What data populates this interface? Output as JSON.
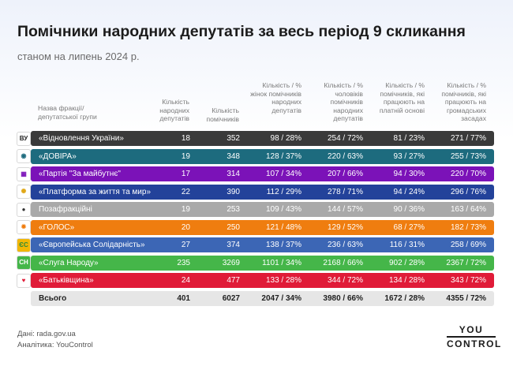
{
  "title": "Помічники народних депутатів за весь період 9 скликання",
  "subtitle": "станом на липень 2024 р.",
  "chart_data": {
    "type": "table",
    "columns": [
      "Назва фракції/ депутатської групи",
      "Кількість народних депутатів",
      "Кількість помічників",
      "Кількість / % жінок помічників народних депутатів",
      "Кількість / % чоловіків помічників народних депутатів",
      "Кількість / % помічників, які працюють на платній основі",
      "Кількість / % помічників, які працюють на громадських засадах"
    ],
    "rows": [
      {
        "name": "«Відновлення України»",
        "deputies": "18",
        "assistants": "352",
        "women": "98 / 28%",
        "men": "254 / 72%",
        "paid": "81 / 23%",
        "volunteer": "271 / 77%",
        "color": "#3a3a3a",
        "text_color": "#ffffff",
        "logo_text": "ВУ",
        "logo_bg": "#ffffff",
        "logo_fg": "#222222"
      },
      {
        "name": "«ДОВІРА»",
        "deputies": "19",
        "assistants": "348",
        "women": "128 / 37%",
        "men": "220 / 63%",
        "paid": "93 / 27%",
        "volunteer": "255 / 73%",
        "color": "#1d6b7e",
        "text_color": "#ffffff",
        "logo_text": "◉",
        "logo_bg": "#ffffff",
        "logo_fg": "#1d6b7e"
      },
      {
        "name": "«Партія \"За майбутнє\"",
        "deputies": "17",
        "assistants": "314",
        "women": "107 / 34%",
        "men": "207 / 66%",
        "paid": "94 / 30%",
        "volunteer": "220 / 70%",
        "color": "#7b12b8",
        "text_color": "#ffffff",
        "logo_text": "▦",
        "logo_bg": "#ffffff",
        "logo_fg": "#7b12b8"
      },
      {
        "name": "«Платформа за життя та мир»",
        "deputies": "22",
        "assistants": "390",
        "women": "112 / 29%",
        "men": "278 / 71%",
        "paid": "94 / 24%",
        "volunteer": "296 / 76%",
        "color": "#23429a",
        "text_color": "#ffffff",
        "logo_text": "✺",
        "logo_bg": "#ffffff",
        "logo_fg": "#e0a818"
      },
      {
        "name": "Позафракційні",
        "deputies": "19",
        "assistants": "253",
        "women": "109 / 43%",
        "men": "144 / 57%",
        "paid": "90 / 36%",
        "volunteer": "163 / 64%",
        "color": "#a9a9a9",
        "text_color": "#ffffff",
        "logo_text": "●",
        "logo_bg": "#ffffff",
        "logo_fg": "#333333"
      },
      {
        "name": "«ГОЛОС»",
        "deputies": "20",
        "assistants": "250",
        "women": "121 / 48%",
        "men": "129 / 52%",
        "paid": "68 / 27%",
        "volunteer": "182 / 73%",
        "color": "#ef7d0f",
        "text_color": "#ffffff",
        "logo_text": "✹",
        "logo_bg": "#ffffff",
        "logo_fg": "#ef7d0f"
      },
      {
        "name": "«Європейська Солідарність»",
        "deputies": "27",
        "assistants": "374",
        "women": "138 / 37%",
        "men": "236 / 63%",
        "paid": "116 / 31%",
        "volunteer": "258 / 69%",
        "color": "#3c66b5",
        "text_color": "#ffffff",
        "logo_text": "ЄС",
        "logo_bg": "#f2b705",
        "logo_fg": "#2e8b3a"
      },
      {
        "name": "«Слуга Народу»",
        "deputies": "235",
        "assistants": "3269",
        "women": "1101 / 34%",
        "men": "2168 / 66%",
        "paid": "902 / 28%",
        "volunteer": "2367 / 72%",
        "color": "#45b649",
        "text_color": "#ffffff",
        "logo_text": "СН",
        "logo_bg": "#45b649",
        "logo_fg": "#ffffff"
      },
      {
        "name": "«Батьківщина»",
        "deputies": "24",
        "assistants": "477",
        "women": "133 / 28%",
        "men": "344 / 72%",
        "paid": "134 / 28%",
        "volunteer": "343 / 72%",
        "color": "#e01b38",
        "text_color": "#ffffff",
        "logo_text": "♥",
        "logo_bg": "#ffffff",
        "logo_fg": "#e01b38"
      }
    ],
    "total": {
      "name": "Всього",
      "deputies": "401",
      "assistants": "6027",
      "women": "2047 / 34%",
      "men": "3980 / 66%",
      "paid": "1672 / 28%",
      "volunteer": "4355 / 72%",
      "color": "#e6e6e6",
      "text_color": "#1f1f1f"
    }
  },
  "footer": {
    "source": "Дані: rada.gov.ua",
    "analytics": "Аналітика: YouControl",
    "brand_top": "YOU",
    "brand_bottom": "CONTROL"
  }
}
